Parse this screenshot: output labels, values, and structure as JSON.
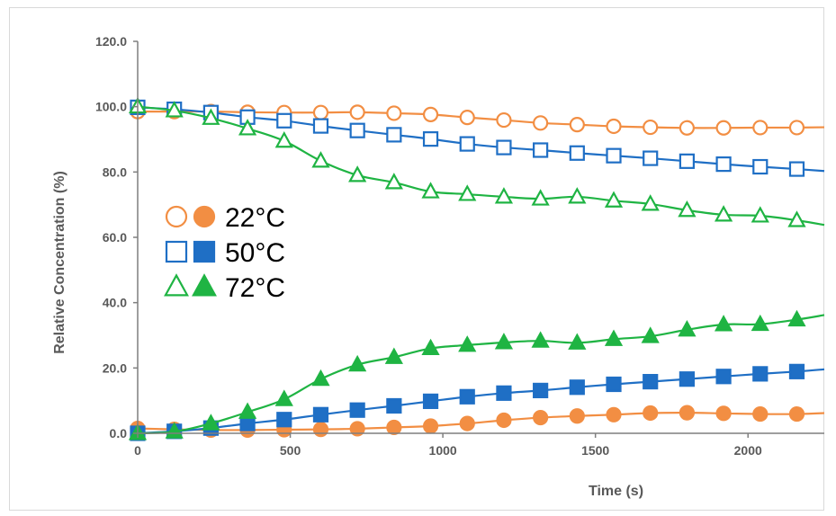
{
  "chart_data": {
    "type": "scatter",
    "xlabel": "Time (s)",
    "ylabel": "Relative Concentration (%)",
    "xlim": [
      0,
      2250
    ],
    "ylim": [
      0,
      120
    ],
    "x_ticks": [
      0,
      500,
      1000,
      1500,
      2000
    ],
    "y_ticks": [
      "0.0",
      "20.0",
      "40.0",
      "60.0",
      "80.0",
      "100.0",
      "120.0"
    ],
    "grid": false,
    "legend_position": "left",
    "legend": [
      {
        "label": "22°C",
        "color": "#f28e43",
        "marker": "circle"
      },
      {
        "label": "50°C",
        "color": "#1f6fc5",
        "marker": "square"
      },
      {
        "label": "72°C",
        "color": "#1fb443",
        "marker": "triangle"
      }
    ],
    "x": [
      0,
      120,
      240,
      360,
      480,
      600,
      720,
      840,
      960,
      1080,
      1200,
      1320,
      1440,
      1560,
      1680,
      1800,
      1920,
      2040,
      2160
    ],
    "series": [
      {
        "group": "22°C",
        "fill": "open",
        "color": "#f28e43",
        "marker": "circle",
        "values": [
          98.5,
          98.5,
          98.5,
          98.3,
          98.2,
          98.2,
          98.3,
          98,
          97.6,
          96.7,
          95.9,
          95,
          94.5,
          94,
          93.7,
          93.5,
          93.5,
          93.6,
          93.6
        ],
        "line_end": 93.7
      },
      {
        "group": "22°C",
        "fill": "filled",
        "color": "#f28e43",
        "marker": "circle",
        "values": [
          1.5,
          1.2,
          1.0,
          1.0,
          1.1,
          1.2,
          1.4,
          1.8,
          2.2,
          3.0,
          4.0,
          4.8,
          5.3,
          5.7,
          6.2,
          6.3,
          6.1,
          5.9,
          5.9
        ],
        "line_end": 6.2
      },
      {
        "group": "50°C",
        "fill": "open",
        "color": "#1f6fc5",
        "marker": "square",
        "values": [
          99.8,
          99.2,
          98.2,
          96.8,
          95.7,
          94.1,
          92.7,
          91.4,
          90.1,
          88.6,
          87.5,
          86.7,
          85.8,
          85.0,
          84.2,
          83.3,
          82.4,
          81.6,
          80.9
        ],
        "line_end": 80.3
      },
      {
        "group": "50°C",
        "fill": "filled",
        "color": "#1f6fc5",
        "marker": "square",
        "values": [
          0,
          0.6,
          1.6,
          3.0,
          4.2,
          5.7,
          7.1,
          8.4,
          9.8,
          11.2,
          12.3,
          13.1,
          14.1,
          15.0,
          15.8,
          16.6,
          17.4,
          18.2,
          18.9
        ],
        "line_end": 19.6
      },
      {
        "group": "72°C",
        "fill": "open",
        "color": "#1fb443",
        "marker": "triangle",
        "values": [
          100,
          98.8,
          96.5,
          93.3,
          89.5,
          83.4,
          79,
          76.8,
          74,
          73.2,
          72.4,
          71.8,
          72.4,
          71.2,
          70.2,
          68.3,
          66.9,
          66.6,
          65.2
        ],
        "line_end": 63.8
      },
      {
        "group": "72°C",
        "fill": "filled",
        "color": "#1fb443",
        "marker": "triangle",
        "values": [
          0,
          0.5,
          3.0,
          6.5,
          10.4,
          16.6,
          21.0,
          23.3,
          26.0,
          27.0,
          27.8,
          28.3,
          27.7,
          28.8,
          29.7,
          31.7,
          33.3,
          33.4,
          34.8
        ],
        "line_end": 36.2
      }
    ]
  }
}
